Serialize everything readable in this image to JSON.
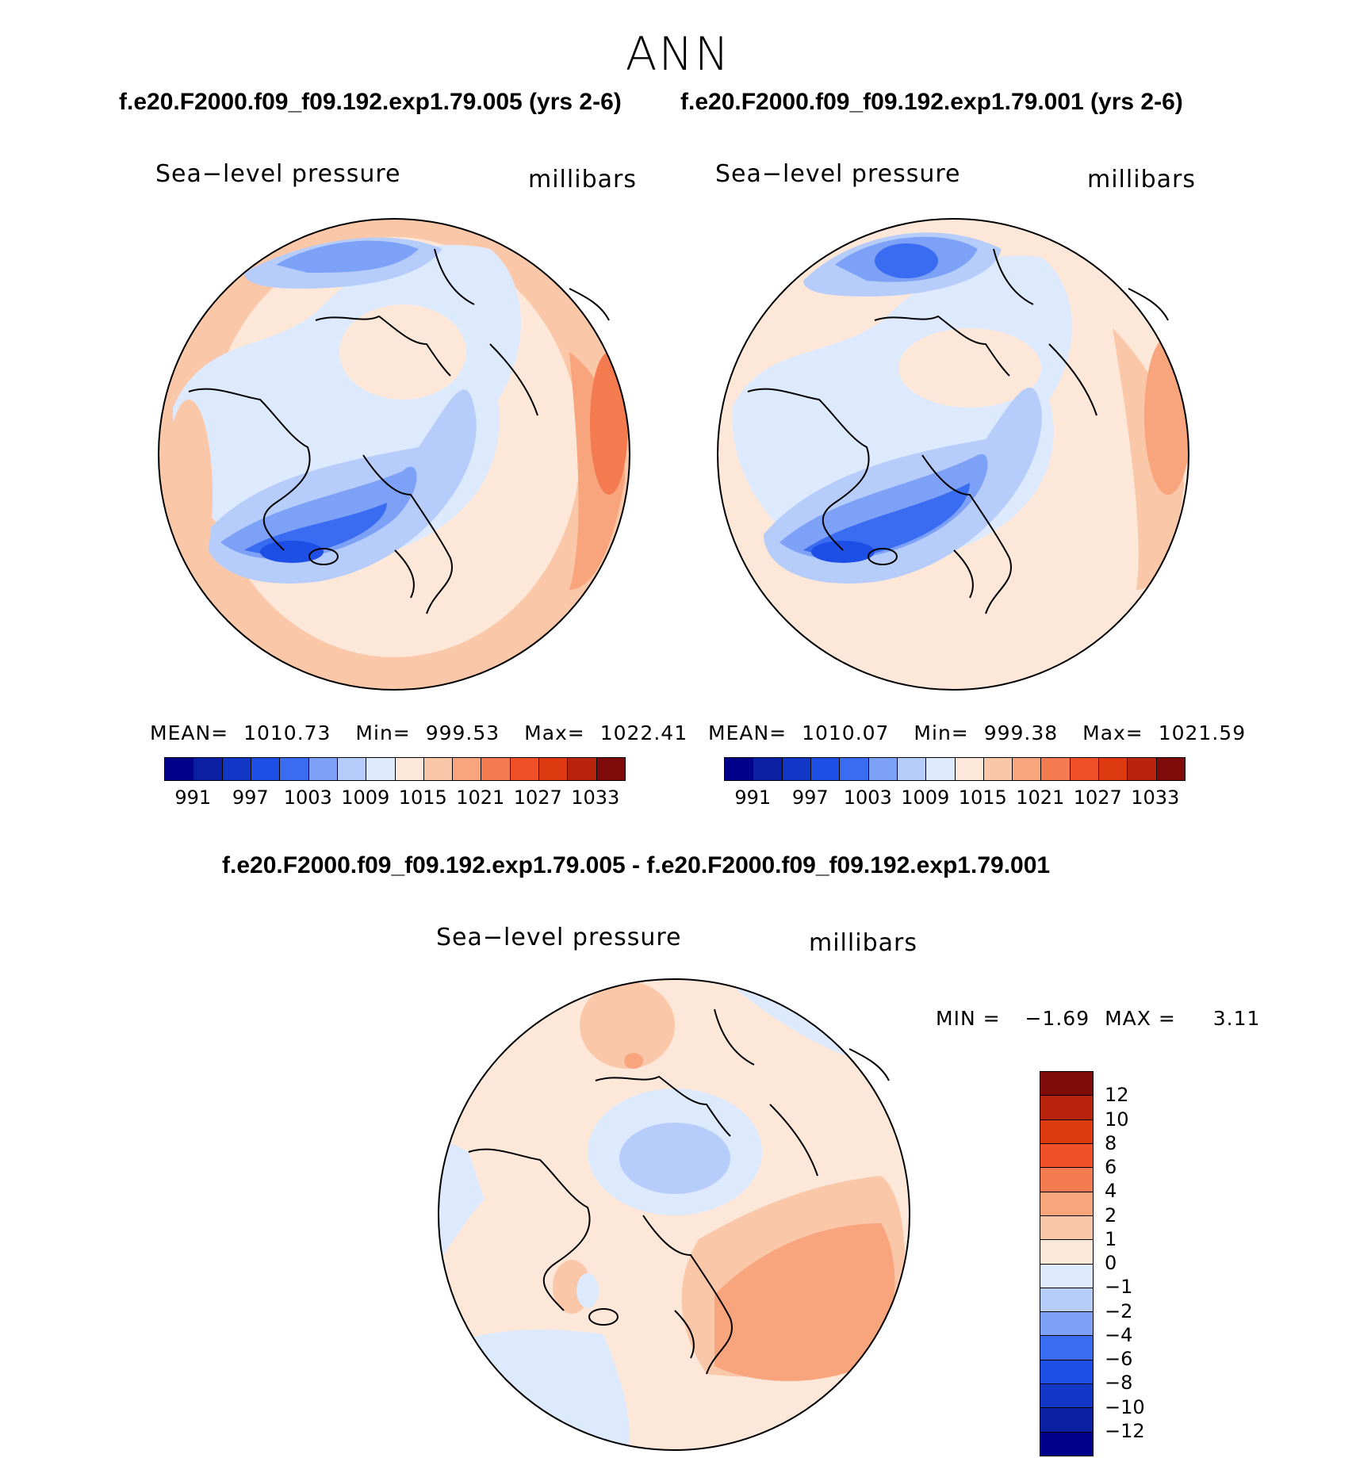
{
  "season": "ANN",
  "case_titles": {
    "left": "f.e20.F2000.f09_f09.192.exp1.79.005 (yrs 2-6)",
    "right": "f.e20.F2000.f09_f09.192.exp1.79.001 (yrs 2-6)",
    "difference": "f.e20.F2000.f09_f09.192.exp1.79.005 - f.e20.F2000.f09_f09.192.exp1.79.001"
  },
  "panels": {
    "left": {
      "variable": "Sea−level pressure",
      "units": "millibars",
      "mean_label": "MEAN=",
      "mean": "1010.73",
      "min_label": "Min=",
      "min": "999.53",
      "max_label": "Max=",
      "max": "1022.41"
    },
    "right": {
      "variable": "Sea−level pressure",
      "units": "millibars",
      "mean_label": "MEAN=",
      "mean": "1010.07",
      "min_label": "Min=",
      "min": "999.38",
      "max_label": "Max=",
      "max": "1021.59"
    },
    "diff": {
      "variable": "Sea−level pressure",
      "units": "millibars",
      "min_label": "MIN =",
      "min": "−1.69",
      "max_label": "MAX =",
      "max": "3.11"
    }
  },
  "colorbar_abs": {
    "tick_labels": [
      "991",
      "997",
      "1003",
      "1009",
      "1015",
      "1021",
      "1027",
      "1033"
    ],
    "colors": [
      "#00008b",
      "#0a1fa3",
      "#1237c7",
      "#1d4fe6",
      "#3a6cf2",
      "#7da1f7",
      "#b6ccfa",
      "#dde9fd",
      "#fde7d8",
      "#fbc7a9",
      "#f8a47c",
      "#f47a4f",
      "#ef5028",
      "#dd3a12",
      "#b9240e",
      "#7f0a0a"
    ]
  },
  "colorbar_diff": {
    "tick_labels": [
      "12",
      "10",
      "8",
      "6",
      "4",
      "2",
      "1",
      "0",
      "−1",
      "−2",
      "−4",
      "−6",
      "−8",
      "−10",
      "−12"
    ],
    "colors": [
      "#7f0a0a",
      "#b9240e",
      "#dd3a12",
      "#ef5028",
      "#f47a4f",
      "#f8a47c",
      "#fbc7a9",
      "#fde7d8",
      "#dde9fd",
      "#b6ccfa",
      "#7da1f7",
      "#3a6cf2",
      "#1d4fe6",
      "#1237c7",
      "#0a1fa3",
      "#00008b"
    ]
  },
  "map_colors": {
    "light_red": "#fde7d8",
    "red1": "#fbc7a9",
    "red2": "#f8a47c",
    "red3": "#f47a4f",
    "light_blue": "#dde9fd",
    "blue1": "#b6ccfa",
    "blue2": "#7da1f7",
    "blue3": "#3a6cf2",
    "blue4": "#1d4fe6"
  }
}
